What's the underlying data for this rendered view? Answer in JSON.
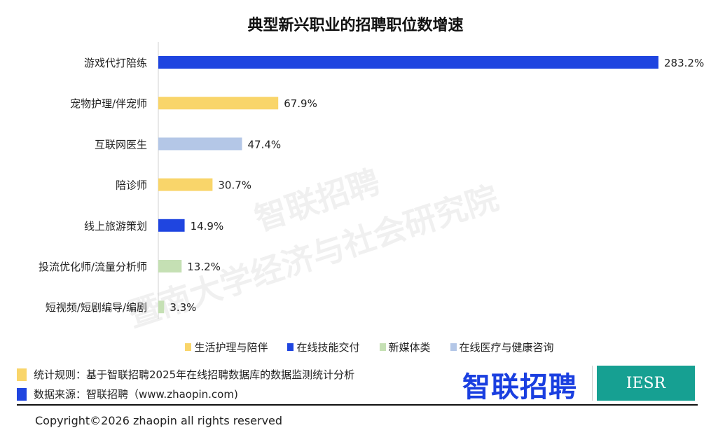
{
  "chart_data": {
    "type": "bar",
    "orientation": "horizontal",
    "title": "典型新兴职业的招聘职位数增速",
    "categories": [
      "游戏代打陪练",
      "宠物护理/伴宠师",
      "互联网医生",
      "陪诊师",
      "线上旅游策划",
      "投流优化师/流量分析师",
      "短视频/短剧编导/编剧"
    ],
    "values": [
      283.2,
      67.9,
      47.4,
      30.7,
      14.9,
      13.2,
      3.3
    ],
    "value_labels": [
      "283.2%",
      "67.9%",
      "47.4%",
      "30.7%",
      "14.9%",
      "13.2%",
      "3.3%"
    ],
    "groups": [
      "在线技能交付",
      "生活护理与陪伴",
      "在线医疗与健康咨询",
      "生活护理与陪伴",
      "在线技能交付",
      "新媒体类",
      "新媒体类"
    ],
    "unit": "%",
    "xlim": [
      0,
      283.2
    ],
    "grid": false,
    "legend": {
      "placement": "bottom",
      "entries": [
        {
          "name": "生活护理与陪伴",
          "color": "#f9d56a"
        },
        {
          "name": "在线技能交付",
          "color": "#1f45e0"
        },
        {
          "name": "新媒体类",
          "color": "#c5e0b4"
        },
        {
          "name": "在线医疗与健康咨询",
          "color": "#b4c7e7"
        }
      ]
    }
  },
  "watermark": [
    "智联招聘",
    "暨南大学经济与社会研究院"
  ],
  "notes": {
    "rule": "统计规则：基于智联招聘2025年在线招聘数据库的数据监测统计分析",
    "source": "数据来源：智联招聘（www.zhaopin.com)",
    "rule_color": "#f9d56a",
    "source_color": "#1f45e0"
  },
  "logos": {
    "zhaopin": "智联招聘",
    "iesr": "IESR"
  },
  "copyright": "Copyright©2026 zhaopin all rights reserved"
}
